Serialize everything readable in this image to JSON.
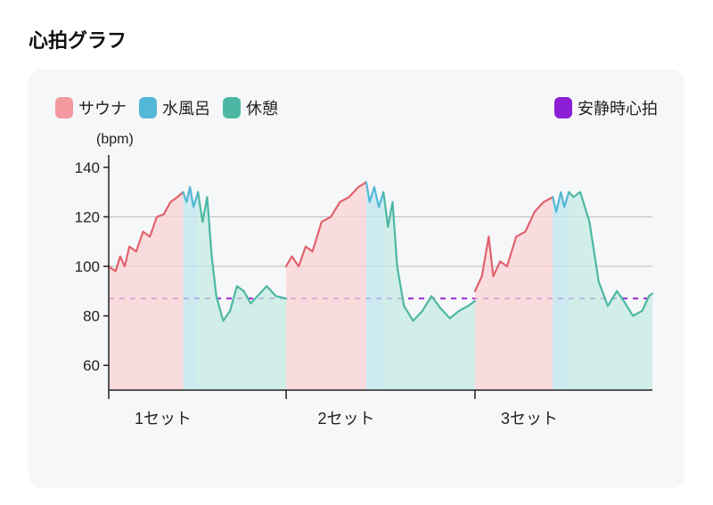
{
  "title": "心拍グラフ",
  "chart": {
    "type": "area-line",
    "unit_label": "(bpm)",
    "background_color": "#f6f7f8",
    "page_background": "#ffffff",
    "title_color": "#111111",
    "title_fontsize": 22,
    "label_color": "#222222",
    "label_fontsize": 18,
    "axis_color": "#222222",
    "grid_color": "#bdbdbd",
    "ylim": [
      50,
      145
    ],
    "yticks": [
      60,
      80,
      100,
      120,
      140
    ],
    "resting_hr": {
      "value": 87,
      "color": "#9b2bd8",
      "dash": "6,6",
      "width": 2
    },
    "x_sets": [
      {
        "label": "1セット",
        "start": 0,
        "sauna_end": 65,
        "mizu_end": 78,
        "rest_end": 155
      },
      {
        "label": "2セット",
        "start": 155,
        "sauna_end": 225,
        "mizu_end": 240,
        "rest_end": 320
      },
      {
        "label": "3セット",
        "start": 320,
        "sauna_end": 388,
        "mizu_end": 402,
        "rest_end": 475
      }
    ],
    "x_range": [
      0,
      475
    ],
    "legend": {
      "sauna": {
        "label": "サウナ",
        "color": "#f29aa0",
        "fill": "#f9d3d6"
      },
      "mizuburo": {
        "label": "水風呂",
        "color": "#52b8d6",
        "fill": "#bfe6ef"
      },
      "kyukei": {
        "label": "休憩",
        "color": "#4cb8a4",
        "fill": "#c6ebe3"
      },
      "resting": {
        "label": "安静時心拍",
        "color": "#8c1fd6"
      }
    },
    "line_width": 2.2,
    "series": {
      "set1": {
        "sauna": [
          [
            0,
            100
          ],
          [
            6,
            98
          ],
          [
            10,
            104
          ],
          [
            14,
            100
          ],
          [
            18,
            108
          ],
          [
            24,
            106
          ],
          [
            30,
            114
          ],
          [
            36,
            112
          ],
          [
            42,
            120
          ],
          [
            48,
            121
          ],
          [
            54,
            126
          ],
          [
            60,
            128
          ],
          [
            65,
            130
          ]
        ],
        "mizu": [
          [
            65,
            130
          ],
          [
            68,
            126
          ],
          [
            71,
            132
          ],
          [
            74,
            124
          ],
          [
            78,
            130
          ]
        ],
        "rest": [
          [
            78,
            130
          ],
          [
            82,
            118
          ],
          [
            86,
            128
          ],
          [
            90,
            104
          ],
          [
            94,
            88
          ],
          [
            100,
            78
          ],
          [
            106,
            82
          ],
          [
            112,
            92
          ],
          [
            118,
            90
          ],
          [
            124,
            85
          ],
          [
            130,
            88
          ],
          [
            138,
            92
          ],
          [
            146,
            88
          ],
          [
            155,
            87
          ]
        ]
      },
      "set2": {
        "sauna": [
          [
            155,
            100
          ],
          [
            160,
            104
          ],
          [
            166,
            100
          ],
          [
            172,
            108
          ],
          [
            178,
            106
          ],
          [
            186,
            118
          ],
          [
            194,
            120
          ],
          [
            202,
            126
          ],
          [
            210,
            128
          ],
          [
            218,
            132
          ],
          [
            225,
            134
          ]
        ],
        "mizu": [
          [
            225,
            134
          ],
          [
            228,
            126
          ],
          [
            232,
            132
          ],
          [
            236,
            124
          ],
          [
            240,
            130
          ]
        ],
        "rest": [
          [
            240,
            130
          ],
          [
            244,
            116
          ],
          [
            248,
            126
          ],
          [
            252,
            100
          ],
          [
            258,
            84
          ],
          [
            266,
            78
          ],
          [
            274,
            82
          ],
          [
            282,
            88
          ],
          [
            290,
            83
          ],
          [
            298,
            79
          ],
          [
            306,
            82
          ],
          [
            314,
            84
          ],
          [
            320,
            86
          ]
        ]
      },
      "set3": {
        "sauna": [
          [
            320,
            90
          ],
          [
            326,
            96
          ],
          [
            332,
            112
          ],
          [
            336,
            96
          ],
          [
            342,
            102
          ],
          [
            348,
            100
          ],
          [
            356,
            112
          ],
          [
            364,
            114
          ],
          [
            372,
            122
          ],
          [
            380,
            126
          ],
          [
            388,
            128
          ]
        ],
        "mizu": [
          [
            388,
            128
          ],
          [
            391,
            122
          ],
          [
            395,
            130
          ],
          [
            398,
            124
          ],
          [
            402,
            130
          ]
        ],
        "rest": [
          [
            402,
            130
          ],
          [
            406,
            128
          ],
          [
            412,
            130
          ],
          [
            420,
            118
          ],
          [
            428,
            94
          ],
          [
            436,
            84
          ],
          [
            444,
            90
          ],
          [
            450,
            86
          ],
          [
            458,
            80
          ],
          [
            466,
            82
          ],
          [
            472,
            88
          ],
          [
            475,
            89
          ]
        ]
      }
    }
  }
}
